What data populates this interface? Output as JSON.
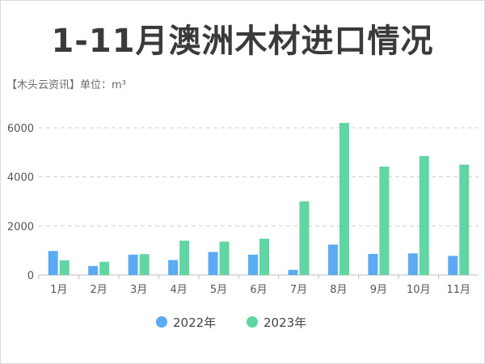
{
  "chart_data": {
    "type": "bar",
    "title": "1-11月澳洲木材进口情况",
    "subtitle": "【木头云资讯】单位：m³",
    "categories": [
      "1月",
      "2月",
      "3月",
      "4月",
      "5月",
      "6月",
      "7月",
      "8月",
      "9月",
      "10月",
      "11月"
    ],
    "series": [
      {
        "name": "2022年",
        "color": "#5aabf2",
        "values": [
          980,
          370,
          830,
          610,
          940,
          830,
          210,
          1240,
          860,
          880,
          780
        ]
      },
      {
        "name": "2023年",
        "color": "#5fd6a3",
        "values": [
          600,
          540,
          850,
          1400,
          1360,
          1480,
          3000,
          6200,
          4420,
          4850,
          4500
        ]
      }
    ],
    "yticks": [
      "0",
      "2000",
      "4000",
      "6000"
    ],
    "ylim": [
      0,
      6000
    ],
    "grid": true,
    "legend_position": "bottom"
  }
}
